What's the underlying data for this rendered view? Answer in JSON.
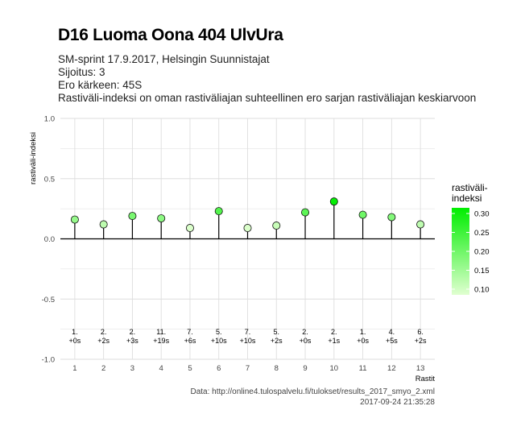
{
  "title": "D16 Luoma Oona 404 UlvUra",
  "subtitle_lines": [
    "SM-sprint 17.9.2017, Helsingin Suunnistajat",
    "Sijoitus: 3",
    "Ero kärkeen: 45S",
    "Rastiväli-indeksi on oman rastiväliajan suhteellinen ero sarjan rastiväliajan keskiarvoon"
  ],
  "caption": {
    "source": "Data: http://online4.tulospalvelu.fi/tulokset/results_2017_smyo_2.xml",
    "timestamp": "2017-09-24 21:35:28"
  },
  "colors": {
    "low": "#e0ffd0",
    "high": "#00ee00",
    "grid": "#dedede",
    "zero_line": "#000000",
    "stem": "#000000"
  },
  "chart_data": {
    "type": "scatter",
    "style": "lollipop",
    "x": [
      1,
      2,
      3,
      4,
      5,
      6,
      7,
      8,
      9,
      10,
      11,
      12,
      13
    ],
    "y": [
      0.16,
      0.12,
      0.19,
      0.17,
      0.09,
      0.23,
      0.09,
      0.11,
      0.22,
      0.31,
      0.2,
      0.18,
      0.12
    ],
    "point_labels": [
      [
        "1.",
        "+0s"
      ],
      [
        "2.",
        "+2s"
      ],
      [
        "2.",
        "+3s"
      ],
      [
        "11.",
        "+19s"
      ],
      [
        "7.",
        "+6s"
      ],
      [
        "5.",
        "+10s"
      ],
      [
        "7.",
        "+10s"
      ],
      [
        "5.",
        "+2s"
      ],
      [
        "2.",
        "+0s"
      ],
      [
        "2.",
        "+1s"
      ],
      [
        "1.",
        "+0s"
      ],
      [
        "4.",
        "+5s"
      ],
      [
        "6.",
        "+2s"
      ]
    ],
    "xlabel": "Rastit",
    "ylabel": "rastiväli-indeksi",
    "xlim": [
      0.5,
      13.5
    ],
    "ylim": [
      -1.0,
      1.0
    ],
    "yticks": [
      -1.0,
      -0.5,
      0.0,
      0.5,
      1.0
    ],
    "ytick_labels": [
      "-1.0",
      "-0.5",
      "0.0",
      "0.5",
      "1.0"
    ],
    "xticks": [
      1,
      2,
      3,
      4,
      5,
      6,
      7,
      8,
      9,
      10,
      11,
      12,
      13
    ],
    "xtick_labels": [
      "1",
      "2",
      "3",
      "4",
      "5",
      "6",
      "7",
      "8",
      "9",
      "10",
      "11",
      "12",
      "13"
    ],
    "grid": true,
    "legend": {
      "title": "rastiväli-\nindeksi",
      "position": "right",
      "range": [
        0.085,
        0.315
      ],
      "breaks": [
        0.1,
        0.15,
        0.2,
        0.25,
        0.3
      ],
      "labels": [
        "0.10",
        "0.15",
        "0.20",
        "0.25",
        "0.30"
      ]
    }
  }
}
